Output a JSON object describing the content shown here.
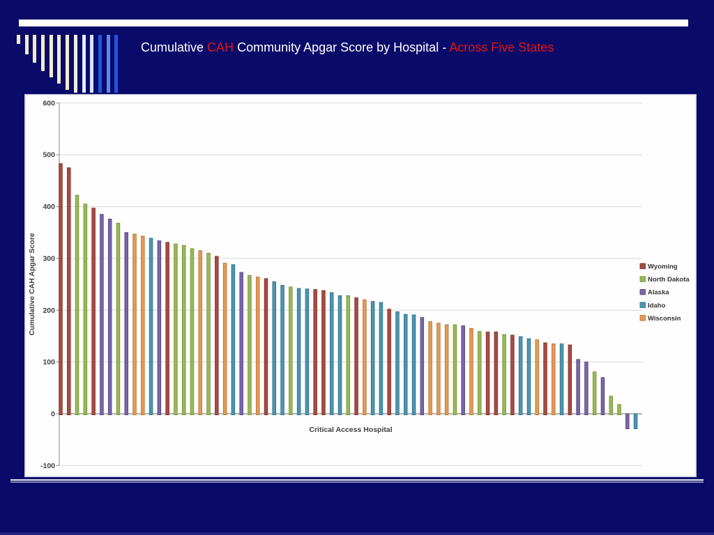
{
  "slide": {
    "background_color": "#0A0A69",
    "title": {
      "segments": [
        {
          "text": "Cumulative ",
          "color": "#FFFFFF"
        },
        {
          "text": "CAH",
          "color": "#E01515"
        },
        {
          "text": " Community Apgar Score by Hospital - ",
          "color": "#FFFFFF"
        },
        {
          "text": "Across Five States",
          "color": "#E01515"
        }
      ]
    },
    "decor": {
      "top_bar_color": "#FFFFFF",
      "stripes": [
        {
          "height": 13,
          "color": "#F2ECCA"
        },
        {
          "height": 28,
          "color": "#F2ECCA"
        },
        {
          "height": 40,
          "color": "#F2ECCA"
        },
        {
          "height": 52,
          "color": "#F2ECCA"
        },
        {
          "height": 61,
          "color": "#F2ECCA"
        },
        {
          "height": 70,
          "color": "#F2ECCA"
        },
        {
          "height": 79,
          "color": "#F2ECCA"
        },
        {
          "height": 83,
          "color": "#EEEDDF"
        },
        {
          "height": 83,
          "color": "#E8EDF9"
        },
        {
          "height": 83,
          "color": "#D8E2F6"
        },
        {
          "height": 83,
          "color": "#1C56E4"
        },
        {
          "height": 83,
          "color": "#5F87EE"
        },
        {
          "height": 83,
          "color": "#1C56E4"
        }
      ]
    }
  },
  "chart_data": {
    "type": "bar",
    "title": "",
    "xlabel": "Critical Access Hospital",
    "ylabel": "Cumulative CAH Apgar Score",
    "ylim": [
      -100,
      600
    ],
    "yticks": [
      600,
      500,
      400,
      300,
      200,
      100,
      0,
      -100
    ],
    "grid": true,
    "legend_position": "right",
    "text_color": "#3F3F3F",
    "gridline_color": "#D7D7D7",
    "axis_line_color": "#9C9C9C",
    "legend": [
      {
        "code": "WY",
        "label": "Wyoming",
        "fill": "#A84B42",
        "stroke": "#7E332C"
      },
      {
        "code": "ND",
        "label": "North Dakota",
        "fill": "#9BB857",
        "stroke": "#75933B"
      },
      {
        "code": "AK",
        "label": "Alaska",
        "fill": "#7767A8",
        "stroke": "#554880"
      },
      {
        "code": "ID",
        "label": "Idaho",
        "fill": "#4C96B2",
        "stroke": "#336F88"
      },
      {
        "code": "WI",
        "label": "Wisconsin",
        "fill": "#E29B55",
        "stroke": "#BC7434"
      }
    ],
    "bars": [
      [
        "WY",
        483
      ],
      [
        "WY",
        475
      ],
      [
        "ND",
        422
      ],
      [
        "ND",
        405
      ],
      [
        "WY",
        397
      ],
      [
        "AK",
        385
      ],
      [
        "AK",
        376
      ],
      [
        "ND",
        368
      ],
      [
        "AK",
        350
      ],
      [
        "WI",
        347
      ],
      [
        "WI",
        343
      ],
      [
        "ID",
        339
      ],
      [
        "AK",
        334
      ],
      [
        "WY",
        331
      ],
      [
        "ND",
        328
      ],
      [
        "ND",
        325
      ],
      [
        "ND",
        319
      ],
      [
        "WI",
        315
      ],
      [
        "ND",
        310
      ],
      [
        "WY",
        304
      ],
      [
        "WI",
        291
      ],
      [
        "ID",
        288
      ],
      [
        "AK",
        273
      ],
      [
        "ND",
        267
      ],
      [
        "WI",
        264
      ],
      [
        "WY",
        261
      ],
      [
        "ID",
        255
      ],
      [
        "ID",
        248
      ],
      [
        "ND",
        245
      ],
      [
        "ID",
        242
      ],
      [
        "ID",
        241
      ],
      [
        "WY",
        240
      ],
      [
        "WY",
        238
      ],
      [
        "ID",
        234
      ],
      [
        "ID",
        228
      ],
      [
        "ND",
        228
      ],
      [
        "WY",
        224
      ],
      [
        "WI",
        220
      ],
      [
        "ID",
        217
      ],
      [
        "ID",
        215
      ],
      [
        "WY",
        202
      ],
      [
        "ID",
        197
      ],
      [
        "ID",
        192
      ],
      [
        "ID",
        191
      ],
      [
        "AK",
        186
      ],
      [
        "WI",
        178
      ],
      [
        "WI",
        175
      ],
      [
        "WI",
        172
      ],
      [
        "ND",
        172
      ],
      [
        "AK",
        170
      ],
      [
        "WI",
        165
      ],
      [
        "ND",
        159
      ],
      [
        "WY",
        158
      ],
      [
        "WY",
        158
      ],
      [
        "ND",
        153
      ],
      [
        "WY",
        152
      ],
      [
        "ID",
        149
      ],
      [
        "ID",
        145
      ],
      [
        "WI",
        143
      ],
      [
        "WY",
        137
      ],
      [
        "WI",
        135
      ],
      [
        "ID",
        135
      ],
      [
        "WY",
        133
      ],
      [
        "AK",
        105
      ],
      [
        "AK",
        100
      ],
      [
        "ND",
        81
      ],
      [
        "AK",
        70
      ],
      [
        "ND",
        34
      ],
      [
        "ND",
        18
      ],
      [
        "AK",
        -29
      ],
      [
        "ID",
        -29
      ]
    ]
  }
}
